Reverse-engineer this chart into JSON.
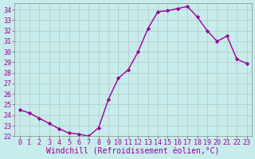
{
  "x": [
    0,
    1,
    2,
    3,
    4,
    5,
    6,
    7,
    8,
    9,
    10,
    11,
    12,
    13,
    14,
    15,
    16,
    17,
    18,
    19,
    20,
    21,
    22,
    23
  ],
  "y": [
    24.5,
    24.2,
    23.7,
    23.2,
    22.7,
    22.3,
    22.2,
    22.0,
    22.8,
    25.5,
    27.5,
    28.3,
    30.0,
    32.2,
    33.8,
    33.9,
    34.1,
    34.3,
    33.3,
    32.0,
    31.0,
    31.5,
    29.3,
    28.9
  ],
  "line_color": "#990099",
  "marker": "D",
  "markersize": 2.2,
  "linewidth": 1.0,
  "bg_color": "#c8ecec",
  "grid_color": "#b0c8c8",
  "xlabel": "Windchill (Refroidissement éolien,°C)",
  "xlabel_color": "#990099",
  "xlabel_fontsize": 7.0,
  "tick_label_color": "#990099",
  "tick_fontsize": 6.0,
  "ylim": [
    22,
    34.6
  ],
  "xlim": [
    -0.5,
    23.5
  ],
  "xtick_labels": [
    "0",
    "1",
    "2",
    "3",
    "4",
    "5",
    "6",
    "7",
    "8",
    "9",
    "10",
    "11",
    "12",
    "13",
    "14",
    "15",
    "16",
    "17",
    "18",
    "19",
    "20",
    "21",
    "22",
    "23"
  ]
}
